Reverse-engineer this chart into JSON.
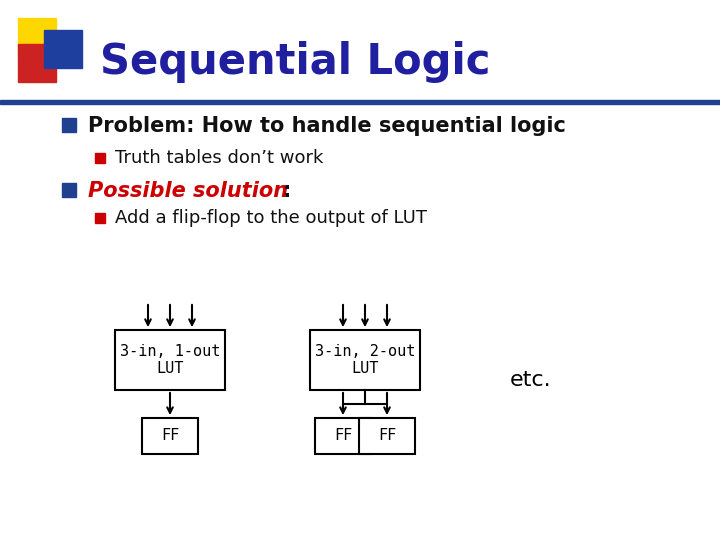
{
  "title": "Sequential Logic",
  "title_color": "#1F1FA0",
  "background_color": "#FFFFFF",
  "bullet1_color": "#1F3F8F",
  "bullet2_color": "#1F3F8F",
  "sub_bullet_color": "#CC0000",
  "bullet1_text": "Problem: How to handle sequential logic",
  "sub_bullet1_text": "Truth tables don’t work",
  "bullet2_text_italic": "Possible solution",
  "bullet2_text_normal": ":",
  "sub_bullet2_text": "Add a flip-flop to the output of LUT",
  "lut1_label": "3-in, 1-out\nLUT",
  "lut2_label": "3-in, 2-out\nLUT",
  "ff_label": "FF",
  "etc_label": "etc.",
  "header_bar_color": "#1F3F8F",
  "logo_yellow": "#FFD700",
  "logo_red": "#CC2222",
  "logo_blue": "#1F3F9F"
}
